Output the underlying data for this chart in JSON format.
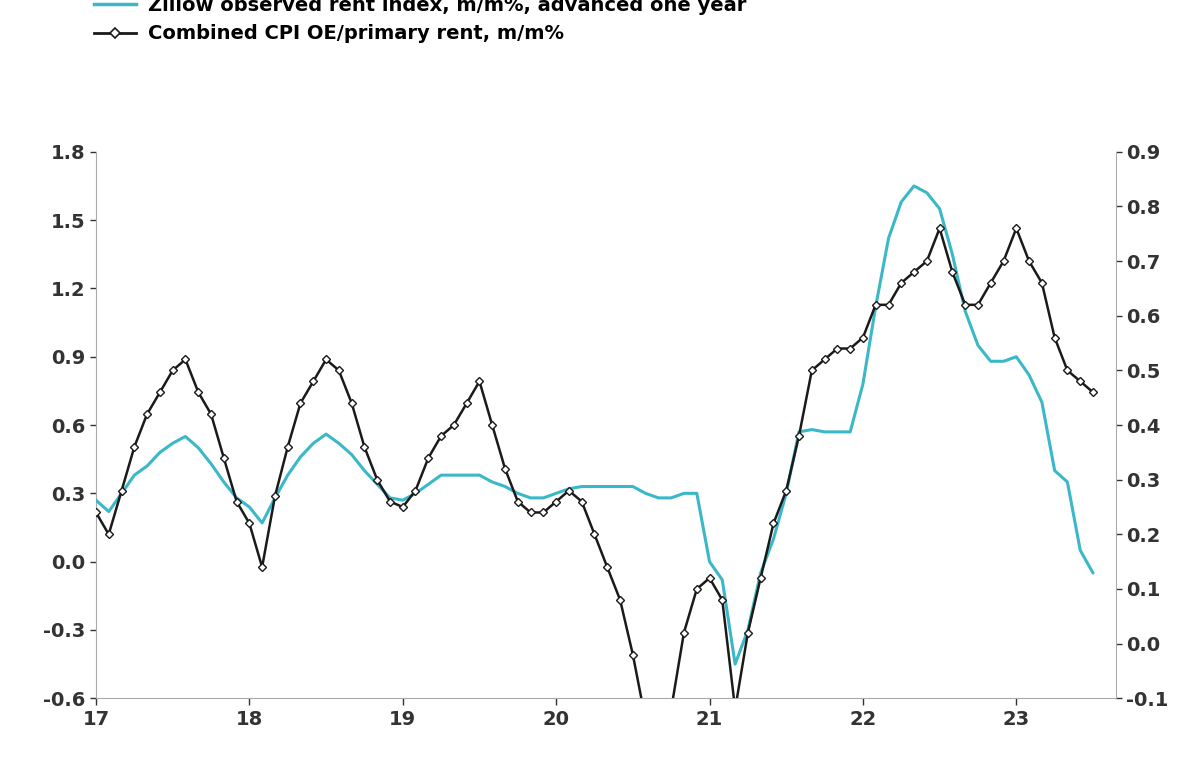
{
  "zillow_x": [
    17.0,
    17.083,
    17.167,
    17.25,
    17.333,
    17.417,
    17.5,
    17.583,
    17.667,
    17.75,
    17.833,
    17.917,
    18.0,
    18.083,
    18.167,
    18.25,
    18.333,
    18.417,
    18.5,
    18.583,
    18.667,
    18.75,
    18.833,
    18.917,
    19.0,
    19.083,
    19.167,
    19.25,
    19.333,
    19.417,
    19.5,
    19.583,
    19.667,
    19.75,
    19.833,
    19.917,
    20.0,
    20.083,
    20.167,
    20.25,
    20.333,
    20.417,
    20.5,
    20.583,
    20.667,
    20.75,
    20.833,
    20.917,
    21.0,
    21.083,
    21.167,
    21.25,
    21.333,
    21.417,
    21.5,
    21.583,
    21.667,
    21.75,
    21.833,
    21.917,
    22.0,
    22.083,
    22.167,
    22.25,
    22.333,
    22.417,
    22.5,
    22.583,
    22.667,
    22.75,
    22.833,
    22.917,
    23.0,
    23.083,
    23.167,
    23.25,
    23.333,
    23.417,
    23.5
  ],
  "zillow_y": [
    0.27,
    0.22,
    0.3,
    0.38,
    0.42,
    0.48,
    0.52,
    0.55,
    0.5,
    0.43,
    0.35,
    0.28,
    0.24,
    0.17,
    0.28,
    0.38,
    0.46,
    0.52,
    0.56,
    0.52,
    0.47,
    0.4,
    0.34,
    0.28,
    0.27,
    0.3,
    0.34,
    0.38,
    0.38,
    0.38,
    0.38,
    0.35,
    0.33,
    0.3,
    0.28,
    0.28,
    0.3,
    0.32,
    0.33,
    0.33,
    0.33,
    0.33,
    0.33,
    0.3,
    0.28,
    0.28,
    0.3,
    0.3,
    0.0,
    -0.08,
    -0.45,
    -0.3,
    -0.05,
    0.1,
    0.3,
    0.57,
    0.58,
    0.57,
    0.57,
    0.57,
    0.78,
    1.12,
    1.42,
    1.58,
    1.65,
    1.62,
    1.55,
    1.35,
    1.1,
    0.95,
    0.88,
    0.88,
    0.9,
    0.82,
    0.7,
    0.4,
    0.35,
    0.05,
    -0.05
  ],
  "cpi_x": [
    17.0,
    17.083,
    17.167,
    17.25,
    17.333,
    17.417,
    17.5,
    17.583,
    17.667,
    17.75,
    17.833,
    17.917,
    18.0,
    18.083,
    18.167,
    18.25,
    18.333,
    18.417,
    18.5,
    18.583,
    18.667,
    18.75,
    18.833,
    18.917,
    19.0,
    19.083,
    19.167,
    19.25,
    19.333,
    19.417,
    19.5,
    19.583,
    19.667,
    19.75,
    19.833,
    19.917,
    20.0,
    20.083,
    20.167,
    20.25,
    20.333,
    20.417,
    20.5,
    20.583,
    20.667,
    20.75,
    20.833,
    20.917,
    21.0,
    21.083,
    21.167,
    21.25,
    21.333,
    21.417,
    21.5,
    21.583,
    21.667,
    21.75,
    21.833,
    21.917,
    22.0,
    22.083,
    22.167,
    22.25,
    22.333,
    22.417,
    22.5,
    22.583,
    22.667,
    22.75,
    22.833,
    22.917,
    23.0,
    23.083,
    23.167,
    23.25,
    23.333,
    23.417,
    23.5
  ],
  "cpi_y": [
    0.24,
    0.2,
    0.28,
    0.36,
    0.42,
    0.46,
    0.5,
    0.52,
    0.46,
    0.42,
    0.34,
    0.26,
    0.22,
    0.14,
    0.27,
    0.36,
    0.44,
    0.48,
    0.52,
    0.5,
    0.44,
    0.36,
    0.3,
    0.26,
    0.25,
    0.28,
    0.34,
    0.38,
    0.4,
    0.44,
    0.48,
    0.4,
    0.32,
    0.26,
    0.24,
    0.24,
    0.26,
    0.28,
    0.26,
    0.2,
    0.14,
    0.08,
    -0.02,
    -0.14,
    -0.2,
    -0.12,
    0.02,
    0.1,
    0.12,
    0.08,
    -0.12,
    0.02,
    0.12,
    0.22,
    0.28,
    0.38,
    0.5,
    0.52,
    0.54,
    0.54,
    0.56,
    0.62,
    0.62,
    0.66,
    0.68,
    0.7,
    0.76,
    0.68,
    0.62,
    0.62,
    0.66,
    0.7,
    0.76,
    0.7,
    0.66,
    0.56,
    0.5,
    0.48,
    0.46
  ],
  "zillow_color": "#3BB8C8",
  "cpi_color": "#1a1a1a",
  "left_ylim": [
    -0.6,
    1.8
  ],
  "right_ylim": [
    -0.1,
    0.9
  ],
  "left_yticks": [
    -0.6,
    -0.3,
    0.0,
    0.3,
    0.6,
    0.9,
    1.2,
    1.5,
    1.8
  ],
  "right_yticks": [
    -0.1,
    0.0,
    0.1,
    0.2,
    0.3,
    0.4,
    0.5,
    0.6,
    0.7,
    0.8,
    0.9
  ],
  "xticks": [
    17,
    18,
    19,
    20,
    21,
    22,
    23
  ],
  "xlim": [
    17.0,
    23.65
  ],
  "legend1": "Zillow observed rent index, m/m%, advanced one year",
  "legend2": "Combined CPI OE/primary rent, m/m%",
  "background_color": "#ffffff",
  "spine_color": "#aaaaaa",
  "tick_label_color": "#333333"
}
